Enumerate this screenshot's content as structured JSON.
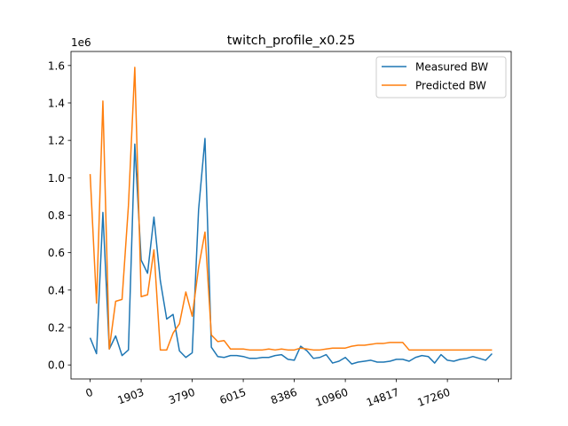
{
  "chart_data": {
    "type": "line",
    "title": "twitch_profile_x0.25",
    "xlabel": "",
    "ylabel": "",
    "y_multiplier_label": "1e6",
    "ylim": [
      -0.075,
      1.675
    ],
    "xlim": [
      -3,
      66
    ],
    "grid": false,
    "legend_position": "top-right",
    "x_ticks": [
      {
        "pos": 0,
        "label": "0"
      },
      {
        "pos": 8,
        "label": "1903"
      },
      {
        "pos": 16,
        "label": "3790"
      },
      {
        "pos": 24,
        "label": "6015"
      },
      {
        "pos": 32,
        "label": "8386"
      },
      {
        "pos": 40,
        "label": "10960"
      },
      {
        "pos": 48,
        "label": "14817"
      },
      {
        "pos": 56,
        "label": "17260"
      },
      {
        "pos": 64,
        "label": ""
      }
    ],
    "y_ticks": [
      {
        "value": 0.0,
        "label": "0.0"
      },
      {
        "value": 0.2,
        "label": "0.2"
      },
      {
        "value": 0.4,
        "label": "0.4"
      },
      {
        "value": 0.6,
        "label": "0.6"
      },
      {
        "value": 0.8,
        "label": "0.8"
      },
      {
        "value": 1.0,
        "label": "1.0"
      },
      {
        "value": 1.2,
        "label": "1.2"
      },
      {
        "value": 1.4,
        "label": "1.4"
      },
      {
        "value": 1.6,
        "label": "1.6"
      }
    ],
    "series": [
      {
        "name": "Measured BW",
        "color": "#1f77b4",
        "values": [
          0.145,
          0.06,
          0.815,
          0.085,
          0.155,
          0.05,
          0.08,
          1.18,
          0.56,
          0.49,
          0.79,
          0.45,
          0.245,
          0.27,
          0.075,
          0.04,
          0.065,
          0.83,
          1.21,
          0.095,
          0.045,
          0.04,
          0.05,
          0.05,
          0.045,
          0.035,
          0.035,
          0.04,
          0.04,
          0.05,
          0.055,
          0.03,
          0.025,
          0.1,
          0.075,
          0.035,
          0.04,
          0.055,
          0.01,
          0.02,
          0.04,
          0.005,
          0.015,
          0.02,
          0.025,
          0.015,
          0.015,
          0.02,
          0.03,
          0.03,
          0.02,
          0.04,
          0.05,
          0.045,
          0.01,
          0.055,
          0.025,
          0.02,
          0.03,
          0.035,
          0.045,
          0.035,
          0.025,
          0.06
        ]
      },
      {
        "name": "Predicted BW",
        "color": "#ff7f0e",
        "values": [
          1.02,
          0.33,
          1.41,
          0.085,
          0.34,
          0.35,
          0.85,
          1.59,
          0.365,
          0.375,
          0.615,
          0.08,
          0.08,
          0.17,
          0.22,
          0.39,
          0.26,
          0.52,
          0.71,
          0.16,
          0.125,
          0.13,
          0.085,
          0.085,
          0.085,
          0.08,
          0.08,
          0.08,
          0.085,
          0.08,
          0.085,
          0.08,
          0.08,
          0.09,
          0.085,
          0.08,
          0.08,
          0.085,
          0.09,
          0.09,
          0.09,
          0.1,
          0.105,
          0.105,
          0.11,
          0.115,
          0.115,
          0.12,
          0.12,
          0.12,
          0.08,
          0.08,
          0.08,
          0.08,
          0.08,
          0.08,
          0.08,
          0.08,
          0.08,
          0.08,
          0.08,
          0.08,
          0.08,
          0.08
        ]
      }
    ]
  }
}
